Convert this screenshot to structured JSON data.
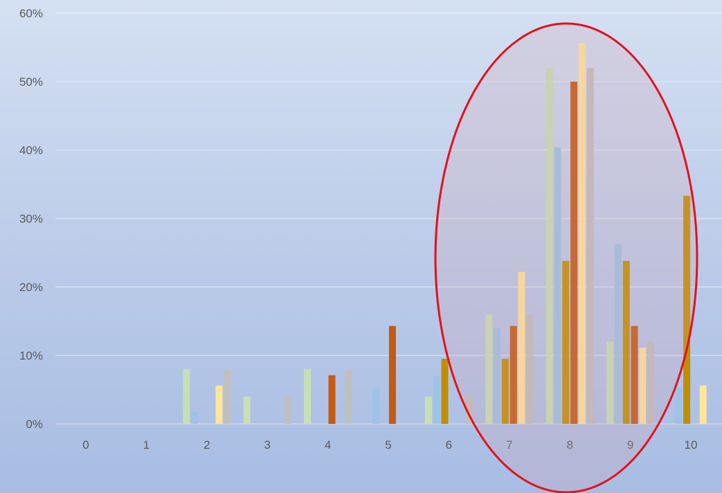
{
  "chart_data": {
    "type": "bar",
    "title": "",
    "xlabel": "",
    "ylabel": "",
    "categories": [
      "0",
      "1",
      "2",
      "3",
      "4",
      "5",
      "6",
      "7",
      "8",
      "9",
      "10"
    ],
    "y_tick_labels": [
      "0%",
      "10%",
      "20%",
      "30%",
      "40%",
      "50%",
      "60%"
    ],
    "ylim": [
      0,
      60
    ],
    "y_unit": "%",
    "grid": true,
    "legend": "none",
    "series": [
      {
        "color": "#c6e0b4",
        "values": [
          0,
          0,
          8,
          4,
          8,
          0,
          4,
          16,
          52,
          12,
          0
        ]
      },
      {
        "color": "#9dc3e6",
        "values": [
          0,
          0,
          1.7,
          0,
          0,
          5.3,
          7,
          14,
          40.4,
          26.3,
          5.3
        ]
      },
      {
        "color": "#bf8f00",
        "values": [
          0,
          0,
          0,
          0,
          0,
          0,
          9.5,
          9.5,
          23.8,
          23.8,
          33.3
        ]
      },
      {
        "color": "#c55a11",
        "values": [
          0,
          0,
          0,
          0,
          7.1,
          14.3,
          0,
          14.3,
          50,
          14.3,
          0
        ]
      },
      {
        "color": "#ffe699",
        "values": [
          0,
          0,
          5.6,
          0,
          0,
          0,
          0,
          22.2,
          55.6,
          11.1,
          5.6
        ]
      },
      {
        "color": "#bfbfbf",
        "values": [
          0,
          0,
          8,
          4,
          8,
          0,
          4,
          16,
          52,
          12,
          0
        ]
      }
    ],
    "highlight": {
      "shape": "ellipse",
      "stroke": "#e3101c",
      "covers_categories": [
        "6",
        "7",
        "8",
        "9",
        "10"
      ]
    }
  }
}
